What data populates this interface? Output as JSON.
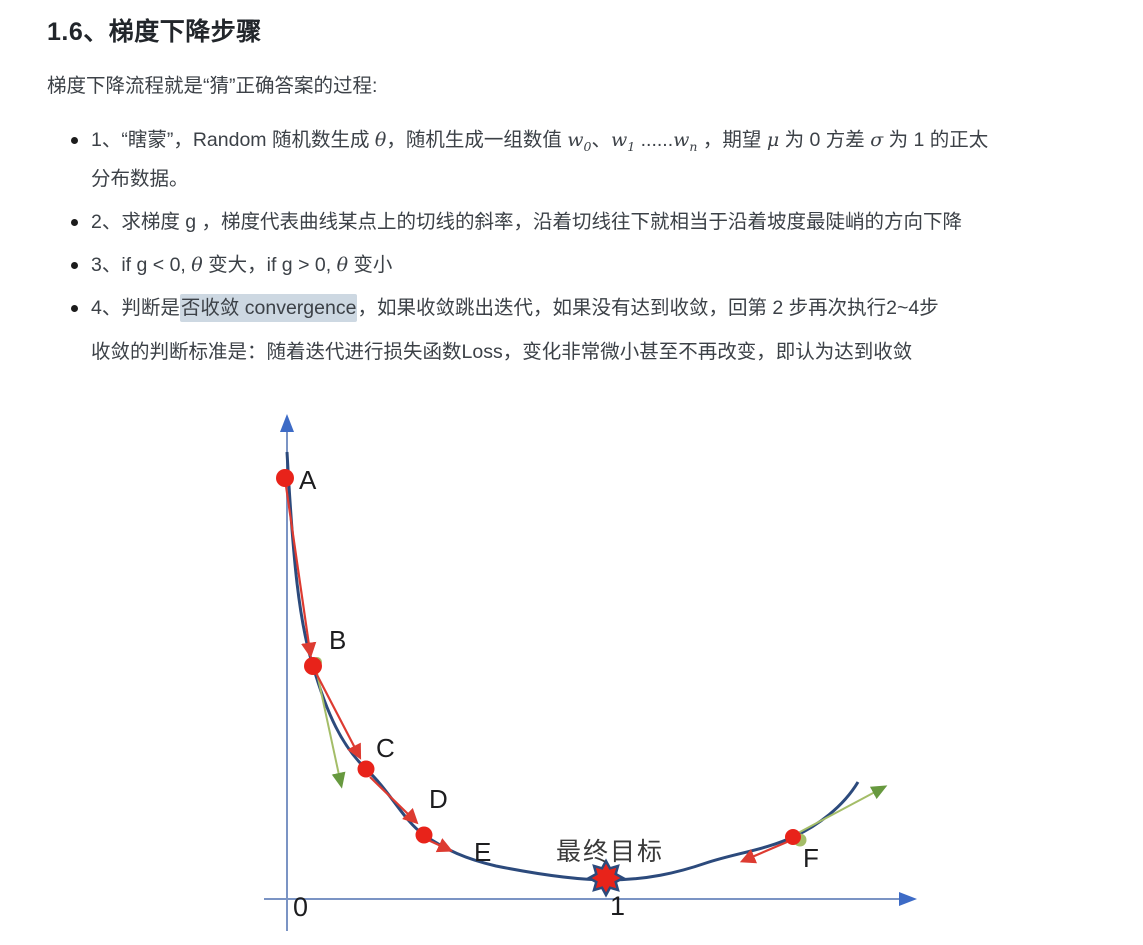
{
  "page": {
    "heading": "1.6、梯度下降步骤",
    "intro": "梯度下降流程就是“猜”正确答案的过程:",
    "bullets": [
      {
        "lines": [
          [
            {
              "t": "x",
              "v": "1、“瞎蒙”，Random 随机数生成 "
            },
            {
              "t": "m",
              "v": "θ"
            },
            {
              "t": "x",
              "v": "，随机生成一组数值 "
            },
            {
              "t": "ms",
              "v": "w",
              "s": "0"
            },
            {
              "t": "x",
              "v": "、"
            },
            {
              "t": "ms",
              "v": "w",
              "s": "1"
            },
            {
              "t": "x",
              "v": " ......"
            },
            {
              "t": "ms",
              "v": "w",
              "s": "n"
            },
            {
              "t": "x",
              "v": " ，期望 "
            },
            {
              "t": "m",
              "v": "μ"
            },
            {
              "t": "x",
              "v": " 为 0 方差 "
            },
            {
              "t": "m",
              "v": "σ"
            },
            {
              "t": "x",
              "v": " 为 1 的正太"
            }
          ],
          [
            {
              "t": "x",
              "v": "分布数据。"
            }
          ]
        ]
      },
      {
        "lines": [
          [
            {
              "t": "x",
              "v": "2、求梯度 g ，梯度代表曲线某点上的切线的斜率，沿着切线往下就相当于沿着坡度最陡峭的方向下降"
            }
          ]
        ]
      },
      {
        "lines": [
          [
            {
              "t": "x",
              "v": "3、if g < 0, "
            },
            {
              "t": "m",
              "v": "θ"
            },
            {
              "t": "x",
              "v": " 变大，if g > 0, "
            },
            {
              "t": "m",
              "v": "θ"
            },
            {
              "t": "x",
              "v": " 变小"
            }
          ]
        ]
      },
      {
        "lines": [
          [
            {
              "t": "x",
              "v": "4、判断是"
            },
            {
              "t": "hl",
              "v": "否收敛 convergence"
            },
            {
              "t": "x",
              "v": "，如果收敛跳出迭代，如果没有达到收敛，回第 2 步再次执行2~4步"
            }
          ],
          [
            {
              "t": "x",
              "v": "收敛的判断标准是：随着迭代进行损失函数Loss，变化非常微小甚至不再改变，即认为达到收敛"
            }
          ]
        ]
      }
    ]
  },
  "diagram": {
    "point_labels": {
      "a": "A",
      "b": "B",
      "c": "C",
      "d": "D",
      "e": "E",
      "f": "F"
    },
    "axis_labels": {
      "origin": "0",
      "minimum_x": "1"
    },
    "goal_label": "最终目标"
  },
  "colors": {
    "selection-highlight": "#cdd8e2",
    "curve": "#2c4a7c",
    "axis-line": "#7b94c4",
    "axis-arrow": "#3d6bc6",
    "marker-red": "#e8231a",
    "arrow-red": "#dd3b31",
    "tangent-green": "#a4bd68",
    "tangent-arrow": "#67993f",
    "star-fill": "#e8231a",
    "star-stroke": "#2c4a7c",
    "label": "#1d1d1f",
    "goal-label": "#3a3a3a"
  }
}
